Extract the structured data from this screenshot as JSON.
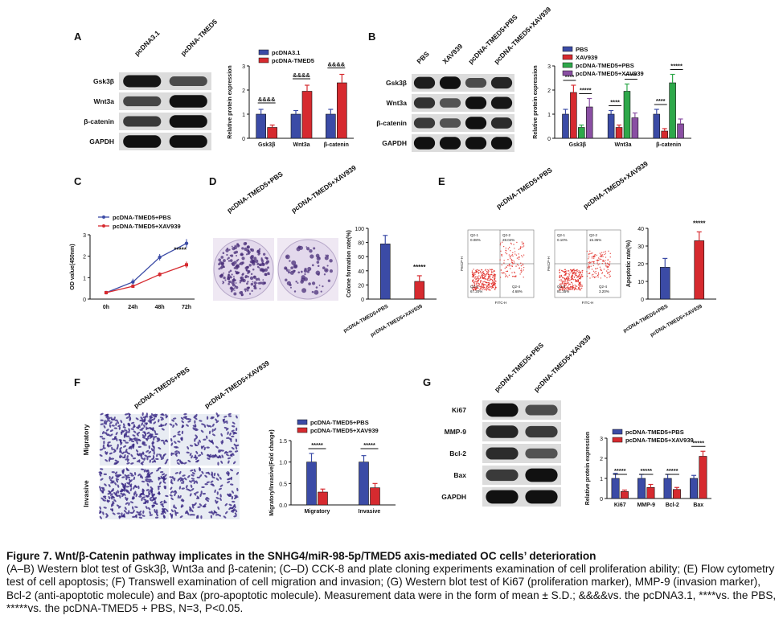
{
  "panels": {
    "A": {
      "letter": "A",
      "lanes": [
        "pcDNA3.1",
        "pcDNA-TMED5"
      ],
      "rows": [
        "Gsk3β",
        "Wnt3a",
        "β-catenin",
        "GAPDH"
      ],
      "intensity": [
        [
          0.95,
          0.55
        ],
        [
          0.6,
          1.0
        ],
        [
          0.7,
          1.0
        ],
        [
          1.0,
          1.0
        ]
      ],
      "chart": {
        "type": "bar",
        "ylabel": "Relative protein expression",
        "ylim": [
          0,
          3
        ],
        "yticks": [
          "0",
          "1",
          "2",
          "3"
        ],
        "categories": [
          "Gsk3β",
          "Wnt3a",
          "β-catenin"
        ],
        "series": [
          {
            "name": "pcDNA3.1",
            "color": "#3b4ba6",
            "values": [
              1.0,
              1.0,
              1.0
            ],
            "errors": [
              0.2,
              0.15,
              0.2
            ]
          },
          {
            "name": "pcDNA-TMED5",
            "color": "#d62a2f",
            "values": [
              0.45,
              1.95,
              2.3
            ],
            "errors": [
              0.1,
              0.25,
              0.35
            ]
          }
        ],
        "sig": [
          "&&&&",
          "&&&&",
          "&&&&"
        ]
      }
    },
    "B": {
      "letter": "B",
      "lanes": [
        "PBS",
        "XAV939",
        "pcDNA-TMED5+PBS",
        "pcDNA-TMED5+XAV939"
      ],
      "rows": [
        "Gsk3β",
        "Wnt3a",
        "β-catenin",
        "GAPDH"
      ],
      "intensity": [
        [
          0.9,
          1.0,
          0.55,
          0.85
        ],
        [
          0.75,
          0.5,
          1.0,
          0.95
        ],
        [
          0.7,
          0.5,
          1.0,
          0.8
        ],
        [
          1.0,
          1.0,
          1.0,
          1.0
        ]
      ],
      "chart": {
        "type": "bar",
        "ylabel": "Relative protein expression",
        "ylim": [
          0,
          3
        ],
        "yticks": [
          "0",
          "1",
          "2",
          "3"
        ],
        "categories": [
          "Gsk3β",
          "Wnt3a",
          "β-catenin"
        ],
        "series": [
          {
            "name": "PBS",
            "color": "#3b4ba6",
            "values": [
              1.0,
              1.0,
              1.0
            ],
            "errors": [
              0.2,
              0.15,
              0.2
            ]
          },
          {
            "name": "XAV939",
            "color": "#d62a2f",
            "values": [
              1.9,
              0.45,
              0.3
            ],
            "errors": [
              0.3,
              0.1,
              0.1
            ]
          },
          {
            "name": "pcDNA-TMED5+PBS",
            "color": "#2ea84a",
            "values": [
              0.45,
              1.95,
              2.3
            ],
            "errors": [
              0.1,
              0.3,
              0.35
            ]
          },
          {
            "name": "pcDNA-TMED5+XAV939",
            "color": "#8a4fa3",
            "values": [
              1.3,
              0.85,
              0.6
            ],
            "errors": [
              0.35,
              0.2,
              0.2
            ]
          }
        ],
        "sig": [
          [
            "****",
            "*****"
          ],
          [
            "****",
            "*****"
          ],
          [
            "****",
            "*****"
          ]
        ]
      }
    },
    "C": {
      "letter": "C",
      "chart": {
        "type": "line",
        "ylabel": "OD value(450nm)",
        "ylim": [
          0,
          3
        ],
        "yticks": [
          "0",
          "1",
          "2",
          "3"
        ],
        "x": [
          "0h",
          "24h",
          "48h",
          "72h"
        ],
        "series": [
          {
            "name": "pcDNA-TMED5+PBS",
            "color": "#3b4ba6",
            "values": [
              0.3,
              0.8,
              1.95,
              2.6
            ],
            "errors": [
              0.05,
              0.15,
              0.15,
              0.2
            ]
          },
          {
            "name": "pcDNA-TMED5+XAV939",
            "color": "#d62a2f",
            "values": [
              0.3,
              0.6,
              1.15,
              1.6
            ],
            "errors": [
              0.05,
              0.05,
              0.1,
              0.15
            ]
          }
        ],
        "sig": "*****"
      }
    },
    "D": {
      "letter": "D",
      "images": [
        "pcDNA-TMED5+PBS",
        "pcDNA-TMED5+XAV939"
      ],
      "chart": {
        "type": "bar",
        "ylabel": "Colone formation rate(%)",
        "ylim": [
          0,
          100
        ],
        "yticks": [
          "0",
          "20",
          "40",
          "60",
          "80",
          "100"
        ],
        "categories": [
          "pcDNA-TMED5+PBS",
          "pcDNA-TMED5+XAV939"
        ],
        "series": [
          {
            "name": "",
            "colors": [
              "#3b4ba6",
              "#d62a2f"
            ],
            "values": [
              78,
              25
            ],
            "errors": [
              12,
              8
            ]
          }
        ],
        "sig": "*****"
      }
    },
    "E": {
      "letter": "E",
      "images": [
        "pcDNA-TMED5+PBS",
        "pcDNA-TMED5+XAV939"
      ],
      "flow": [
        {
          "q1": "Q2-1\n0.08%",
          "q2": "Q2-2\n28.04%",
          "q3": "Q2-3\n67.20%",
          "q4": "Q2-4\n4.68%"
        },
        {
          "q1": "Q2-1\n0.10%",
          "q2": "Q2-2\n15.35%",
          "q3": "Q2-3\n81.35%",
          "q4": "Q2-4\n3.20%"
        }
      ],
      "xaxis": "FITC-H",
      "yaxis": "PerCP-H",
      "chart": {
        "type": "bar",
        "ylabel": "Apoptotic rate(%)",
        "ylim": [
          0,
          40
        ],
        "yticks": [
          "0",
          "10",
          "20",
          "30",
          "40"
        ],
        "categories": [
          "pcDNA-TMED5+PBS",
          "pcDNA-TMED5+XAV939"
        ],
        "series": [
          {
            "name": "",
            "colors": [
              "#3b4ba6",
              "#d62a2f"
            ],
            "values": [
              18,
              33
            ],
            "errors": [
              5,
              5
            ]
          }
        ],
        "sig": "*****"
      }
    },
    "F": {
      "letter": "F",
      "images": [
        "pcDNA-TMED5+PBS",
        "pcDNA-TMED5+XAV939"
      ],
      "rows": [
        "Migratory",
        "Invasive"
      ],
      "chart": {
        "type": "bar",
        "ylabel": "Migratory/Invasive(Fold change)",
        "ylim": [
          0,
          1.5
        ],
        "yticks": [
          "0.0",
          "0.5",
          "1.0",
          "1.5"
        ],
        "categories": [
          "Migratory",
          "Invasive"
        ],
        "series": [
          {
            "name": "pcDNA-TMED5+PBS",
            "color": "#3b4ba6",
            "values": [
              1.0,
              1.0
            ],
            "errors": [
              0.2,
              0.15
            ]
          },
          {
            "name": "pcDNA-TMED5+XAV939",
            "color": "#d62a2f",
            "values": [
              0.3,
              0.4
            ],
            "errors": [
              0.07,
              0.1
            ]
          }
        ],
        "sig": [
          "*****",
          "*****"
        ]
      }
    },
    "G": {
      "letter": "G",
      "lanes": [
        "pcDNA-TMED5+PBS",
        "pcDNA-TMED5+XAV939"
      ],
      "rows": [
        "Ki67",
        "MMP-9",
        "Bcl-2",
        "Bax",
        "GAPDH"
      ],
      "intensity": [
        [
          1.0,
          0.55
        ],
        [
          0.85,
          0.7
        ],
        [
          0.8,
          0.5
        ],
        [
          0.7,
          1.0
        ],
        [
          1.0,
          1.0
        ]
      ],
      "chart": {
        "type": "bar",
        "ylabel": "Relative protein expression",
        "ylim": [
          0,
          3
        ],
        "yticks": [
          "0",
          "1",
          "2",
          "3"
        ],
        "categories": [
          "Ki67",
          "MMP-9",
          "Bcl-2",
          "Bax"
        ],
        "series": [
          {
            "name": "pcDNA-TMED5+PBS",
            "color": "#3b4ba6",
            "values": [
              1.0,
              1.0,
              1.0,
              1.0
            ],
            "errors": [
              0.25,
              0.2,
              0.2,
              0.15
            ]
          },
          {
            "name": "pcDNA-TMED5+XAV939",
            "color": "#d62a2f",
            "values": [
              0.35,
              0.55,
              0.45,
              2.1
            ],
            "errors": [
              0.07,
              0.15,
              0.1,
              0.25
            ]
          }
        ],
        "sig": [
          "*****",
          "*****",
          "*****",
          "*****"
        ]
      }
    }
  },
  "caption": {
    "title": "Figure 7. Wnt/β-Catenin pathway implicates in the SNHG4/miR-98-5p/TMED5 axis-mediated OC cells’ deterioration",
    "body": "(A–B) Western blot test of Gsk3β, Wnt3a and β-catenin; (C–D) CCK-8 and plate cloning experiments examination of cell proliferation ability; (E) Flow cytometry test of cell apoptosis; (F) Transwell examination of cell migration and invasion; (G) Western blot test of Ki67 (proliferation marker), MMP-9 (invasion marker), Bcl-2 (anti-apoptotic molecule) and Bax (pro-apoptotic molecule). Measurement data were in the form of mean ± S.D.; &&&&vs. the pcDNA3.1, ****vs. the PBS, *****vs. the pcDNA-TMED5 + PBS, N=3, P<0.05."
  }
}
